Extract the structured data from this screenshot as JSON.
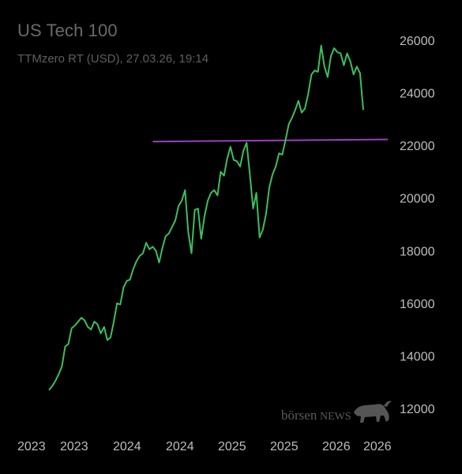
{
  "header": {
    "title": "US Tech 100",
    "subtitle": "TTMzero RT (USD), 27.03.26, 19:14"
  },
  "watermark": {
    "brand_lower": "börsen",
    "brand_upper": "NEWS"
  },
  "colors": {
    "background": "#000000",
    "line": "#3bbf5e",
    "reference_line": "#9b3fbf",
    "text": "#bdbdbd"
  },
  "chart_data": {
    "type": "line",
    "title": "US Tech 100",
    "subtitle": "TTMzero RT (USD), 27.03.26, 19:14",
    "xlabel": "",
    "ylabel": "",
    "x_tick_labels": [
      "2023",
      "2023",
      "2024",
      "2024",
      "2025",
      "2025",
      "2026",
      "2026"
    ],
    "y_ticks": [
      12000,
      14000,
      16000,
      18000,
      20000,
      22000,
      24000,
      26000
    ],
    "ylim": [
      11600,
      26600
    ],
    "y_axis_position": "right",
    "grid": false,
    "legend": "none",
    "series": [
      {
        "color": "#3bbf5e",
        "values": [
          12700,
          12850,
          13050,
          13300,
          13600,
          14350,
          14450,
          15050,
          15150,
          15300,
          15450,
          15350,
          15100,
          15000,
          15300,
          15200,
          14850,
          15100,
          14600,
          14700,
          15300,
          16000,
          15950,
          16600,
          16850,
          16900,
          17300,
          17600,
          17800,
          17900,
          18300,
          18050,
          18150,
          18000,
          17550,
          18100,
          18550,
          18650,
          18900,
          19150,
          19700,
          19900,
          20300,
          18700,
          17900,
          19550,
          19600,
          18450,
          19300,
          19900,
          20200,
          20300,
          20100,
          21000,
          20850,
          21500,
          21950,
          21450,
          21400,
          21200,
          21800,
          22100,
          20900,
          19600,
          20200,
          18500,
          18800,
          19400,
          20400,
          20900,
          21200,
          21700,
          21650,
          22200,
          22800,
          23050,
          23350,
          23700,
          23250,
          23400,
          23950,
          24700,
          24850,
          24800,
          25800,
          25000,
          24600,
          25400,
          25700,
          25550,
          25500,
          25050,
          25500,
          25200,
          24700,
          25000,
          24750,
          23350
        ],
        "note": "approximately weekly closes, read off the right axis"
      }
    ],
    "reference_lines": [
      {
        "y": 22150,
        "y_end": 22230,
        "color": "#9b3fbf",
        "x_start_fraction_of_series": 0.33
      }
    ]
  }
}
